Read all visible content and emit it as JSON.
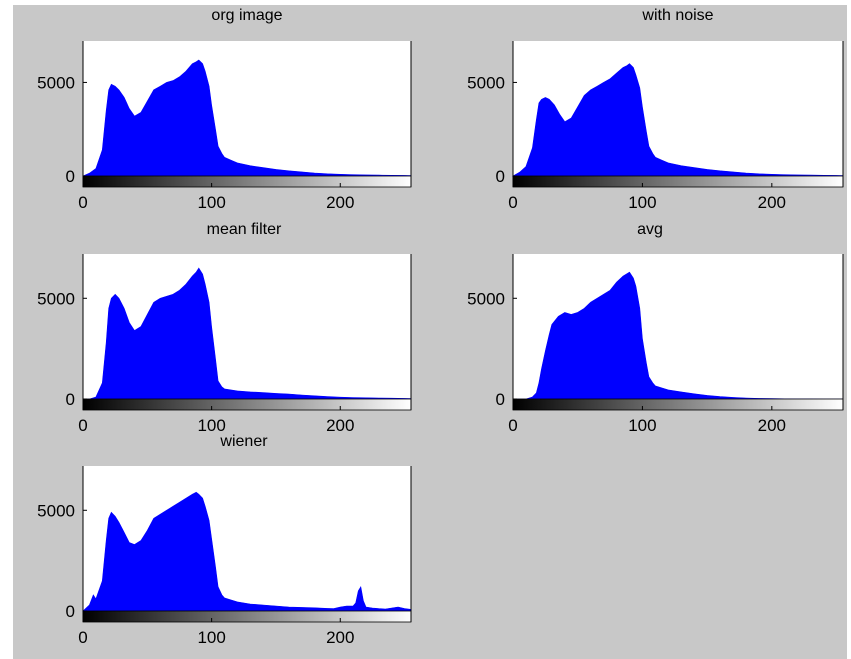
{
  "window": {
    "background": "#c8c8c8",
    "axes_background": "#ffffff",
    "bar_color": "#0000ff"
  },
  "chart_data": [
    {
      "type": "area",
      "title": "org image",
      "xlabel": "",
      "ylabel": "",
      "xlim": [
        0,
        255
      ],
      "ylim": [
        0,
        7000
      ],
      "xticks": [
        0,
        100,
        200
      ],
      "yticks": [
        0,
        5000
      ],
      "colorbar": "grayscale 0-255",
      "series": [
        {
          "x": [
            0,
            5,
            10,
            15,
            18,
            20,
            22,
            25,
            28,
            32,
            36,
            40,
            45,
            50,
            55,
            60,
            65,
            70,
            75,
            80,
            85,
            88,
            90,
            93,
            95,
            98,
            100,
            103,
            105,
            108,
            110,
            115,
            120,
            130,
            140,
            150,
            160,
            170,
            180,
            190,
            200,
            210,
            220,
            230,
            240,
            250,
            255
          ],
          "values": [
            0,
            150,
            400,
            1400,
            3500,
            4600,
            4900,
            4800,
            4600,
            4200,
            3600,
            3200,
            3400,
            4000,
            4600,
            4800,
            5000,
            5100,
            5300,
            5600,
            6000,
            6100,
            6200,
            6000,
            5600,
            4800,
            3800,
            2500,
            1600,
            1200,
            1000,
            850,
            700,
            550,
            450,
            350,
            280,
            220,
            160,
            120,
            90,
            70,
            60,
            50,
            40,
            30,
            20
          ]
        }
      ]
    },
    {
      "type": "area",
      "title": "with noise",
      "xlabel": "",
      "ylabel": "",
      "xlim": [
        0,
        255
      ],
      "ylim": [
        0,
        7000
      ],
      "xticks": [
        0,
        100,
        200
      ],
      "yticks": [
        0,
        5000
      ],
      "colorbar": "grayscale 0-255",
      "series": [
        {
          "x": [
            0,
            5,
            10,
            15,
            18,
            20,
            22,
            25,
            28,
            32,
            36,
            40,
            45,
            50,
            55,
            60,
            65,
            70,
            75,
            80,
            85,
            88,
            90,
            93,
            95,
            98,
            100,
            103,
            105,
            108,
            110,
            115,
            120,
            130,
            140,
            150,
            160,
            170,
            180,
            190,
            200,
            210,
            220,
            230,
            240,
            250,
            255
          ],
          "values": [
            0,
            200,
            500,
            1500,
            3000,
            3900,
            4100,
            4200,
            4100,
            3800,
            3300,
            2900,
            3100,
            3700,
            4300,
            4600,
            4800,
            5000,
            5200,
            5500,
            5800,
            5900,
            6000,
            5800,
            5400,
            4700,
            3700,
            2400,
            1600,
            1200,
            1000,
            850,
            700,
            550,
            450,
            350,
            280,
            220,
            160,
            120,
            90,
            70,
            60,
            50,
            40,
            30,
            20
          ]
        }
      ]
    },
    {
      "type": "area",
      "title": "mean filter",
      "xlabel": "",
      "ylabel": "",
      "xlim": [
        0,
        255
      ],
      "ylim": [
        0,
        7000
      ],
      "xticks": [
        0,
        100,
        200
      ],
      "yticks": [
        0,
        5000
      ],
      "colorbar": "grayscale 0-255",
      "series": [
        {
          "x": [
            0,
            5,
            10,
            15,
            18,
            20,
            22,
            25,
            28,
            32,
            36,
            40,
            45,
            50,
            55,
            60,
            65,
            70,
            75,
            80,
            85,
            88,
            90,
            93,
            95,
            98,
            100,
            103,
            105,
            108,
            110,
            115,
            120,
            130,
            140,
            150,
            160,
            170,
            180,
            190,
            200,
            210,
            220,
            230,
            240,
            250,
            255
          ],
          "values": [
            0,
            0,
            100,
            800,
            2800,
            4500,
            5000,
            5200,
            5000,
            4500,
            3800,
            3400,
            3600,
            4200,
            4800,
            5000,
            5100,
            5200,
            5400,
            5700,
            6100,
            6300,
            6500,
            6200,
            5700,
            4800,
            3600,
            2000,
            900,
            600,
            500,
            450,
            400,
            350,
            320,
            280,
            250,
            200,
            160,
            120,
            90,
            70,
            60,
            50,
            40,
            30,
            20
          ]
        }
      ]
    },
    {
      "type": "area",
      "title": "avg",
      "xlabel": "",
      "ylabel": "",
      "xlim": [
        0,
        255
      ],
      "ylim": [
        0,
        7000
      ],
      "xticks": [
        0,
        100,
        200
      ],
      "yticks": [
        0,
        5000
      ],
      "colorbar": "grayscale 0-255",
      "series": [
        {
          "x": [
            0,
            10,
            15,
            18,
            20,
            22,
            25,
            28,
            30,
            35,
            40,
            45,
            50,
            55,
            60,
            65,
            70,
            75,
            80,
            85,
            90,
            93,
            95,
            98,
            100,
            103,
            105,
            108,
            110,
            115,
            120,
            130,
            140,
            150,
            160,
            170,
            180,
            190,
            200,
            210,
            220,
            230,
            240,
            255
          ],
          "values": [
            0,
            0,
            100,
            300,
            800,
            1500,
            2400,
            3200,
            3700,
            4100,
            4300,
            4200,
            4300,
            4500,
            4800,
            5000,
            5200,
            5400,
            5800,
            6100,
            6300,
            6000,
            5600,
            4500,
            3000,
            1800,
            1100,
            800,
            650,
            550,
            450,
            350,
            260,
            180,
            120,
            80,
            50,
            30,
            20,
            10,
            5,
            3,
            2,
            0
          ]
        }
      ]
    },
    {
      "type": "area",
      "title": "wiener",
      "xlabel": "",
      "ylabel": "",
      "xlim": [
        0,
        255
      ],
      "ylim": [
        0,
        7000
      ],
      "xticks": [
        0,
        100,
        200
      ],
      "yticks": [
        0,
        5000
      ],
      "colorbar": "grayscale 0-255",
      "series": [
        {
          "x": [
            0,
            5,
            8,
            10,
            15,
            18,
            20,
            22,
            25,
            28,
            32,
            36,
            40,
            45,
            50,
            55,
            60,
            65,
            70,
            75,
            80,
            85,
            88,
            90,
            93,
            95,
            98,
            100,
            103,
            105,
            108,
            110,
            115,
            120,
            130,
            140,
            150,
            160,
            170,
            180,
            190,
            195,
            200,
            205,
            210,
            212,
            214,
            216,
            218,
            220,
            225,
            230,
            235,
            240,
            245,
            250,
            255
          ],
          "values": [
            0,
            300,
            800,
            600,
            1500,
            3500,
            4600,
            4900,
            4700,
            4400,
            3900,
            3400,
            3300,
            3500,
            4000,
            4600,
            4800,
            5000,
            5200,
            5400,
            5600,
            5800,
            5900,
            5800,
            5600,
            5200,
            4500,
            3600,
            2200,
            1200,
            800,
            650,
            550,
            450,
            350,
            300,
            250,
            200,
            180,
            160,
            130,
            120,
            200,
            250,
            250,
            400,
            1000,
            1200,
            500,
            200,
            150,
            120,
            100,
            150,
            200,
            120,
            80
          ]
        }
      ]
    }
  ]
}
